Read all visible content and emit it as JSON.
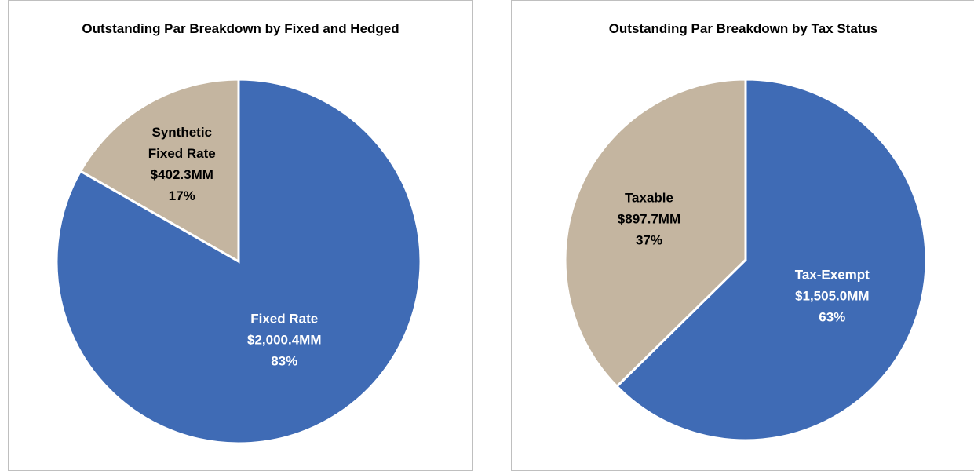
{
  "chart_data": [
    {
      "type": "pie",
      "title": "Outstanding Par Breakdown by Fixed and Hedged",
      "categories": [
        "Fixed Rate",
        "Synthetic Fixed Rate"
      ],
      "values": [
        2000.4,
        402.3
      ],
      "value_labels": [
        "$2,000.4MM",
        "$402.3MM"
      ],
      "percent_labels": [
        "83%",
        "17%"
      ],
      "colors": [
        "#3f6bb5",
        "#c4b5a0"
      ],
      "label_colors": [
        "#ffffff",
        "#000000"
      ]
    },
    {
      "type": "pie",
      "title": "Outstanding Par Breakdown by Tax Status",
      "categories": [
        "Tax-Exempt",
        "Taxable"
      ],
      "values": [
        1505.0,
        897.7
      ],
      "value_labels": [
        "$1,505.0MM",
        "$897.7MM"
      ],
      "percent_labels": [
        "63%",
        "37%"
      ],
      "colors": [
        "#3f6bb5",
        "#c4b5a0"
      ],
      "label_colors": [
        "#ffffff",
        "#000000"
      ]
    }
  ]
}
